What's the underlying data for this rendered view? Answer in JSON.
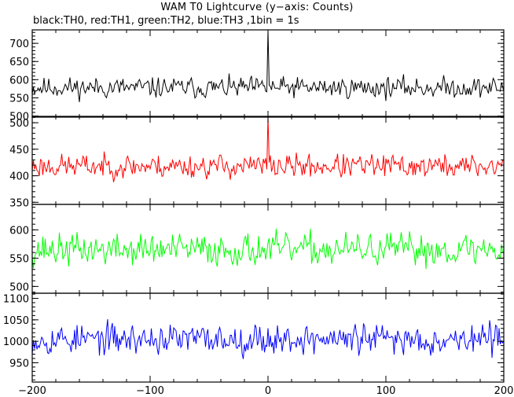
{
  "title": "WAM T0 Lightcurve (y−axis: Counts)",
  "subtitle": "black:TH0, red:TH1, green:TH2, blue:TH3 ,1bin = 1s",
  "chart_data": {
    "type": "line",
    "x_range": [
      -200,
      200
    ],
    "x_ticks": [
      -200,
      -100,
      0,
      100,
      200
    ],
    "x_tick_labels": [
      "−200",
      "−100",
      "0",
      "100",
      "200"
    ],
    "bin_seconds": 1,
    "panels": [
      {
        "name": "TH0",
        "color": "#000000",
        "ylim": [
          497,
          737
        ],
        "y_ticks": [
          500,
          550,
          600,
          650,
          700
        ],
        "y_tick_labels": [
          "500",
          "550",
          "600",
          "650",
          "700"
        ],
        "mean": 578,
        "amplitude": 24,
        "spike": {
          "x": 0,
          "y": 737
        },
        "seed": 11
      },
      {
        "name": "TH1",
        "color": "#ff0000",
        "ylim": [
          346,
          512
        ],
        "y_ticks": [
          350,
          400,
          450,
          500
        ],
        "y_tick_labels": [
          "350",
          "400",
          "450",
          "500"
        ],
        "mean": 418,
        "amplitude": 19,
        "spike": {
          "x": 0,
          "y": 512
        },
        "seed": 23
      },
      {
        "name": "TH2",
        "color": "#00ff00",
        "ylim": [
          488,
          645
        ],
        "y_ticks": [
          500,
          550,
          600
        ],
        "y_tick_labels": [
          "500",
          "550",
          "600"
        ],
        "mean": 565,
        "amplitude": 24,
        "spike": null,
        "seed": 37
      },
      {
        "name": "TH3",
        "color": "#0000ff",
        "ylim": [
          905,
          1112
        ],
        "y_ticks": [
          950,
          1000,
          1050,
          1100
        ],
        "y_tick_labels": [
          "950",
          "1000",
          "1050",
          "1100"
        ],
        "mean": 1005,
        "amplitude": 30,
        "spike": null,
        "seed": 53
      }
    ]
  }
}
